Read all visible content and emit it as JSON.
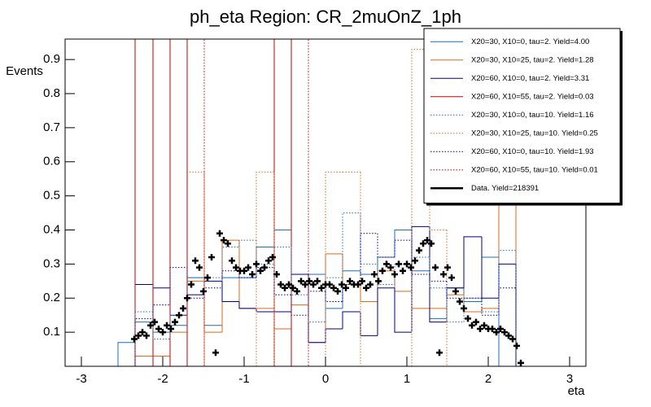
{
  "chart_data": {
    "type": "histogram",
    "title": "ph_eta Region: CR_2muOnZ_1ph",
    "xlabel": "eta",
    "ylabel": "Events",
    "xlim": [
      -3.2,
      3.2
    ],
    "ylim": [
      0,
      0.96
    ],
    "xticks": [
      -3,
      -2,
      -1,
      0,
      1,
      2,
      3
    ],
    "yticks": [
      0.1,
      0.2,
      0.3,
      0.4,
      0.5,
      0.6,
      0.7,
      0.8,
      0.9
    ],
    "legend": "top right",
    "bins": [
      -2.55,
      -2.34,
      -2.12,
      -1.91,
      -1.7,
      -1.49,
      -1.27,
      -1.06,
      -0.85,
      -0.63,
      -0.42,
      -0.21,
      0,
      0.21,
      0.43,
      0.64,
      0.85,
      1.06,
      1.28,
      1.49,
      1.7,
      1.92,
      2.13,
      2.34
    ],
    "series": [
      {
        "name": "X20=30, X10=0, tau=2. Yield=4.00",
        "color": "#1f6fb4",
        "style": "solid",
        "values": [
          0.07,
          0.13,
          0.1,
          0.12,
          0.26,
          0.12,
          0.26,
          0.26,
          0.35,
          0.4,
          0.27,
          0.27,
          0.17,
          0.28,
          0.27,
          0.32,
          0.4,
          0.28,
          0.14,
          0.23,
          0.19,
          0.32,
          0
        ]
      },
      {
        "name": "X20=30, X10=25, tau=2. Yield=1.28",
        "color": "#e06a1a",
        "style": "solid",
        "values": [
          0,
          0.03,
          0.03,
          0.1,
          0.25,
          0.1,
          0.37,
          0.17,
          0.17,
          0.11,
          0.18,
          0.07,
          0.33,
          0.24,
          0.19,
          0.28,
          0.22,
          0.17,
          0.17,
          0.21,
          0.16,
          0.17,
          0.52
        ]
      },
      {
        "name": "X20=60, X10=0, tau=2. Yield=3.31",
        "color": "#000080",
        "style": "solid",
        "values": [
          0,
          0.24,
          0.23,
          0.15,
          0.21,
          0.25,
          0.19,
          0.17,
          0.16,
          0.16,
          0.27,
          0.07,
          0.11,
          0.16,
          0.09,
          0.23,
          0.1,
          0.41,
          0.13,
          0.23,
          0.38,
          0.2,
          0.3
        ]
      },
      {
        "name": "X20=60, X10=55, tau=2. Yield=0.03",
        "color": "#c00000",
        "style": "solid",
        "values": [
          0,
          1,
          0,
          1,
          0,
          0,
          0,
          0,
          0,
          1,
          0,
          0,
          0,
          0,
          0,
          0,
          0,
          0,
          0,
          0,
          0,
          0,
          0
        ]
      },
      {
        "name": "X20=30, X10=0, tau=10. Yield=1.16",
        "color": "#1f6fb4",
        "style": "dotted",
        "values": [
          0,
          0.16,
          0.08,
          0.15,
          0.26,
          0.26,
          0.35,
          0.37,
          0.3,
          0.35,
          0.21,
          0.13,
          0.26,
          0.45,
          0.3,
          0.24,
          0.3,
          0.32,
          0.23,
          0.13,
          0.2,
          0.16,
          0.34
        ]
      },
      {
        "name": "X20=30, X10=25, tau=10. Yield=0.25",
        "color": "#e06a1a",
        "style": "dotted",
        "values": [
          0,
          0,
          0,
          0,
          0.57,
          0,
          0,
          0,
          0.57,
          0,
          0,
          0,
          0.57,
          0.57,
          0,
          0,
          0,
          0.93,
          0.4,
          0,
          0,
          0,
          0
        ]
      },
      {
        "name": "X20=60, X10=0, tau=10. Yield=1.93",
        "color": "#000080",
        "style": "dotted",
        "values": [
          0,
          0.14,
          0.18,
          0.29,
          0.2,
          0.23,
          0.28,
          0.26,
          0.29,
          0.21,
          0.15,
          0.22,
          0.19,
          0.24,
          0.39,
          0.32,
          0.37,
          0.27,
          0.25,
          0.2,
          0.2,
          0.15,
          0.23
        ]
      },
      {
        "name": "X20=60, X10=55, tau=10. Yield=0.01",
        "color": "#c00000",
        "style": "dotted",
        "values": [
          0,
          0,
          0,
          0,
          1,
          0,
          0,
          0,
          0,
          0,
          1,
          0,
          0,
          0,
          0,
          0,
          0,
          0,
          0,
          0,
          0,
          0,
          0
        ]
      },
      {
        "name": "Data. Yield=218391",
        "color": "#000000",
        "style": "markers",
        "x": [
          -2.35,
          -2.3,
          -2.25,
          -2.2,
          -2.15,
          -2.1,
          -2.05,
          -2,
          -1.95,
          -1.9,
          -1.85,
          -1.8,
          -1.75,
          -1.7,
          -1.65,
          -1.6,
          -1.55,
          -1.5,
          -1.45,
          -1.4,
          -1.35,
          -1.3,
          -1.25,
          -1.2,
          -1.15,
          -1.1,
          -1.05,
          -1,
          -0.95,
          -0.9,
          -0.85,
          -0.8,
          -0.75,
          -0.7,
          -0.65,
          -0.6,
          -0.55,
          -0.5,
          -0.45,
          -0.4,
          -0.35,
          -0.3,
          -0.25,
          -0.2,
          -0.15,
          -0.1,
          -0.05,
          0,
          0.05,
          0.1,
          0.15,
          0.2,
          0.25,
          0.3,
          0.35,
          0.4,
          0.45,
          0.5,
          0.55,
          0.6,
          0.65,
          0.7,
          0.75,
          0.8,
          0.85,
          0.9,
          0.95,
          1,
          1.05,
          1.1,
          1.15,
          1.2,
          1.25,
          1.3,
          1.35,
          1.4,
          1.45,
          1.5,
          1.55,
          1.6,
          1.65,
          1.7,
          1.75,
          1.8,
          1.85,
          1.9,
          1.95,
          2,
          2.05,
          2.1,
          2.15,
          2.2,
          2.25,
          2.3,
          2.35,
          2.4
        ],
        "values": [
          0.08,
          0.09,
          0.1,
          0.09,
          0.12,
          0.13,
          0.11,
          0.1,
          0.12,
          0.11,
          0.13,
          0.15,
          0.17,
          0.2,
          0.24,
          0.31,
          0.29,
          0.22,
          0.26,
          0.32,
          0.04,
          0.39,
          0.37,
          0.36,
          0.31,
          0.29,
          0.28,
          0.28,
          0.29,
          0.27,
          0.3,
          0.28,
          0.29,
          0.31,
          0.32,
          0.27,
          0.24,
          0.23,
          0.24,
          0.23,
          0.22,
          0.25,
          0.24,
          0.25,
          0.24,
          0.25,
          0.23,
          0.24,
          0.24,
          0.23,
          0.22,
          0.24,
          0.23,
          0.25,
          0.24,
          0.24,
          0.25,
          0.23,
          0.24,
          0.27,
          0.25,
          0.28,
          0.3,
          0.29,
          0.27,
          0.3,
          0.28,
          0.3,
          0.29,
          0.31,
          0.34,
          0.36,
          0.37,
          0.36,
          0.29,
          0.04,
          0.27,
          0.29,
          0.26,
          0.22,
          0.19,
          0.17,
          0.14,
          0.12,
          0.13,
          0.11,
          0.12,
          0.11,
          0.11,
          0.1,
          0.11,
          0.1,
          0.09,
          0.08,
          0.06,
          0.01
        ]
      }
    ]
  }
}
